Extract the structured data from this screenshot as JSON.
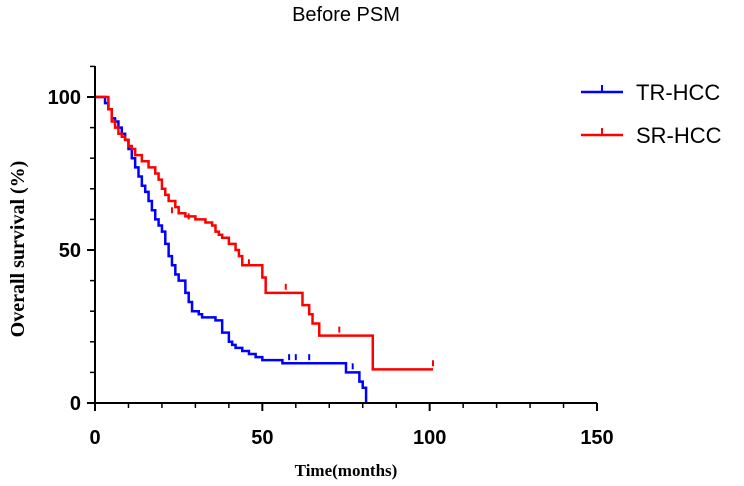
{
  "chart_data": {
    "type": "line",
    "step": true,
    "title": "Before PSM",
    "xlabel": "Time(months)",
    "ylabel": "Overall survival (%)",
    "xlim": [
      0,
      150
    ],
    "ylim": [
      0,
      100
    ],
    "xticks": [
      "0",
      "50",
      "100",
      "150"
    ],
    "yticks": [
      "0",
      "50",
      "100"
    ],
    "legend_position": "top-right",
    "grid": false,
    "series": [
      {
        "name": "TR-HCC",
        "color": "#0000ff",
        "points": [
          [
            0,
            100
          ],
          [
            3,
            98
          ],
          [
            4,
            96
          ],
          [
            5,
            93
          ],
          [
            6,
            92
          ],
          [
            7,
            90
          ],
          [
            8,
            88
          ],
          [
            9,
            86
          ],
          [
            10,
            83
          ],
          [
            11,
            80
          ],
          [
            12,
            77
          ],
          [
            13,
            74
          ],
          [
            14,
            71
          ],
          [
            15,
            69
          ],
          [
            16,
            66
          ],
          [
            17,
            63
          ],
          [
            18,
            60
          ],
          [
            19,
            58
          ],
          [
            20,
            56
          ],
          [
            21,
            52
          ],
          [
            22,
            48
          ],
          [
            23,
            45
          ],
          [
            24,
            42
          ],
          [
            25,
            40
          ],
          [
            27,
            36
          ],
          [
            28,
            33
          ],
          [
            29,
            30
          ],
          [
            31,
            29
          ],
          [
            32,
            28
          ],
          [
            36,
            27
          ],
          [
            38,
            23
          ],
          [
            40,
            20
          ],
          [
            41,
            19
          ],
          [
            42,
            18
          ],
          [
            44,
            17
          ],
          [
            46,
            16
          ],
          [
            48,
            15
          ],
          [
            50,
            14
          ],
          [
            56,
            13
          ],
          [
            75,
            10
          ],
          [
            79,
            7
          ],
          [
            80,
            5
          ],
          [
            81,
            0
          ]
        ],
        "censored": [
          [
            58,
            14
          ],
          [
            60,
            14
          ],
          [
            64,
            14
          ],
          [
            77,
            11
          ]
        ]
      },
      {
        "name": "SR-HCC",
        "color": "#ff0000",
        "points": [
          [
            0,
            100
          ],
          [
            3,
            100
          ],
          [
            4,
            96
          ],
          [
            5,
            92
          ],
          [
            6,
            90
          ],
          [
            7,
            88
          ],
          [
            8,
            87
          ],
          [
            9,
            86
          ],
          [
            10,
            84
          ],
          [
            11,
            83
          ],
          [
            12,
            81
          ],
          [
            14,
            79
          ],
          [
            16,
            77
          ],
          [
            18,
            75
          ],
          [
            19,
            73
          ],
          [
            20,
            70
          ],
          [
            21,
            68
          ],
          [
            22,
            66
          ],
          [
            24,
            64
          ],
          [
            25,
            62
          ],
          [
            27,
            61
          ],
          [
            30,
            60
          ],
          [
            33,
            59
          ],
          [
            35,
            58
          ],
          [
            36,
            56
          ],
          [
            37,
            55
          ],
          [
            38,
            54
          ],
          [
            40,
            52
          ],
          [
            42,
            50
          ],
          [
            43,
            48
          ],
          [
            44,
            45
          ],
          [
            50,
            41
          ],
          [
            51,
            36
          ],
          [
            57,
            36
          ],
          [
            61,
            36
          ],
          [
            62,
            32
          ],
          [
            64,
            29
          ],
          [
            65,
            26
          ],
          [
            67,
            22
          ],
          [
            82,
            22
          ],
          [
            83,
            11
          ],
          [
            101,
            11
          ]
        ],
        "censored": [
          [
            23,
            62
          ],
          [
            28,
            60
          ],
          [
            46,
            45
          ],
          [
            57,
            37
          ],
          [
            73,
            23
          ],
          [
            101,
            12
          ]
        ]
      }
    ]
  }
}
